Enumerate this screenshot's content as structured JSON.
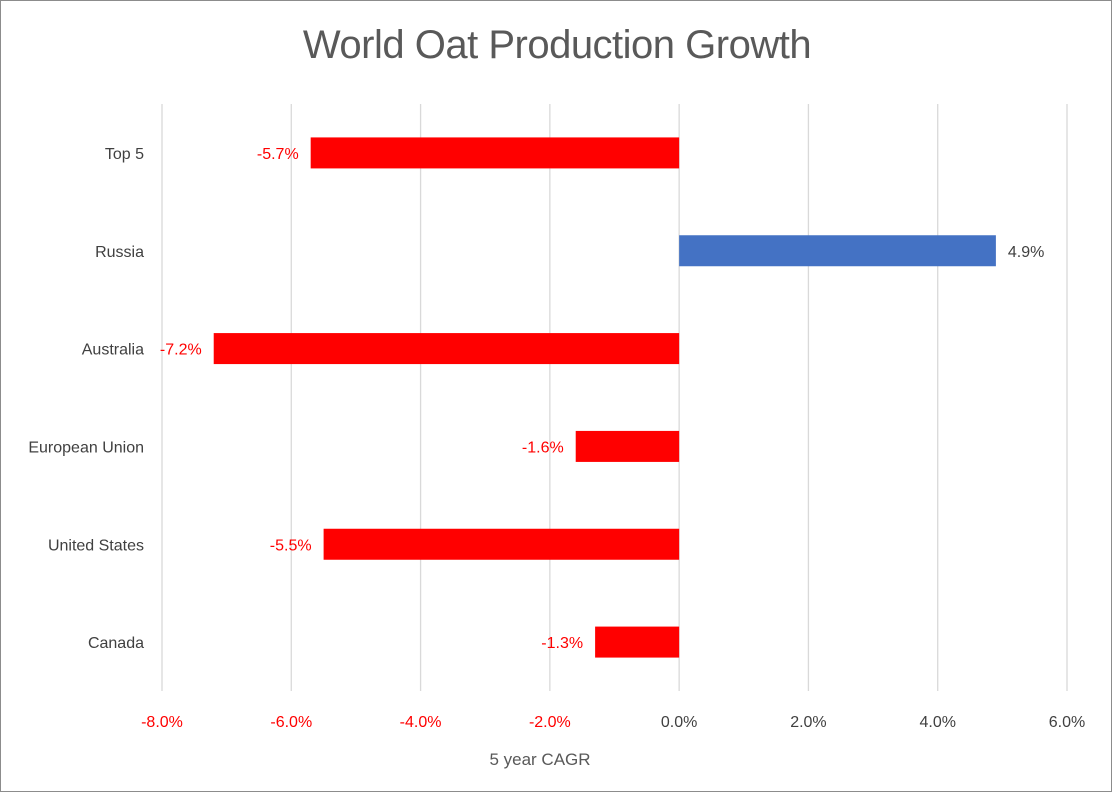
{
  "chart_data": {
    "type": "bar",
    "orientation": "horizontal",
    "title": "World Oat Production Growth",
    "xlabel": "5 year CAGR",
    "ylabel": "",
    "categories": [
      "Top 5",
      "Russia",
      "Australia",
      "European Union",
      "United States",
      "Canada"
    ],
    "values": [
      -0.057,
      0.049,
      -0.072,
      -0.016,
      -0.055,
      -0.013
    ],
    "data_labels": [
      "-5.7%",
      "4.9%",
      "-7.2%",
      "-1.6%",
      "-5.5%",
      "-1.3%"
    ],
    "xlim": [
      -0.08,
      0.06
    ],
    "x_ticks": [
      -0.08,
      -0.06,
      -0.04,
      -0.02,
      0.0,
      0.02,
      0.04,
      0.06
    ],
    "x_tick_labels": [
      "-8.0%",
      "-6.0%",
      "-4.0%",
      "-2.0%",
      "0.0%",
      "2.0%",
      "4.0%",
      "6.0%"
    ],
    "grid": true,
    "legend": "none",
    "colors": {
      "negative": "#ff0000",
      "positive": "#4472c4",
      "negative_text": "#ff0000",
      "positive_text": "#404040",
      "grid": "#d9d9d9"
    }
  }
}
